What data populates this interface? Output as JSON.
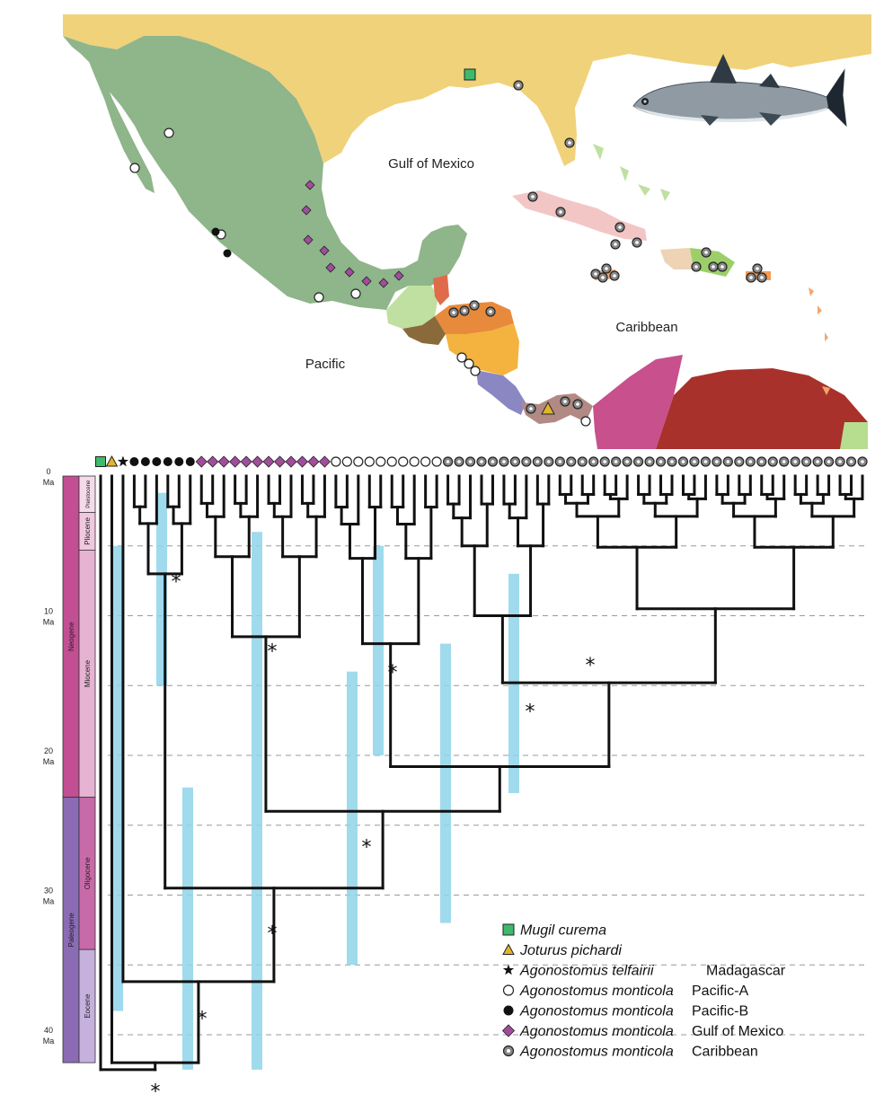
{
  "map": {
    "labels": {
      "gulf": "Gulf of Mexico",
      "caribbean": "Caribbean",
      "pacific": "Pacific"
    },
    "colors": {
      "us": "#f0d27a",
      "mexico": "#8fb58a",
      "sea": "#ffffff",
      "cuba": "#f3c6c6",
      "hispaniola": "#9ccf6a",
      "south_america": "#a9312c",
      "venezuela_pink": "#c8508c",
      "central_green": "#b7dd8f",
      "honduras": "#e88a3c",
      "nicaragua": "#f3b33e",
      "costa_rica": "#8b87c2",
      "panama": "#b08a83",
      "belize": "#e06b4a",
      "guatemala": "#bfe0a0"
    }
  },
  "legend": {
    "entries": [
      {
        "species": "Mugil curema",
        "region": "",
        "marker": "square",
        "color": "#3dba6a"
      },
      {
        "species": "Joturus pichardi",
        "region": "",
        "marker": "triangle",
        "color": "#e2b52b"
      },
      {
        "species": "Agonostomus telfairii",
        "region": "Madagascar",
        "marker": "star",
        "color": "#111111"
      },
      {
        "species": "Agonostomus monticola",
        "region": "Pacific-A",
        "marker": "open-circle",
        "color": "#ffffff"
      },
      {
        "species": "Agonostomus monticola",
        "region": "Pacific-B",
        "marker": "filled-circle",
        "color": "#111111"
      },
      {
        "species": "Agonostomus monticola",
        "region": "Gulf of Mexico",
        "marker": "diamond",
        "color": "#a14d9c"
      },
      {
        "species": "Agonostomus monticola",
        "region": "Caribbean",
        "marker": "ring-circle",
        "color": "#888888"
      }
    ]
  },
  "timescale": {
    "ticks": [
      {
        "ma": 0,
        "label": "0",
        "unit": "Ma"
      },
      {
        "ma": 10,
        "label": "10",
        "unit": "Ma"
      },
      {
        "ma": 20,
        "label": "20",
        "unit": "Ma"
      },
      {
        "ma": 30,
        "label": "30",
        "unit": "Ma"
      },
      {
        "ma": 40,
        "label": "40",
        "unit": "Ma"
      }
    ],
    "periods": [
      {
        "name": "Neogene",
        "start": 0,
        "end": 23,
        "color": "#c24e93"
      },
      {
        "name": "Paleogene",
        "start": 23,
        "end": 42,
        "color": "#8b6bb4"
      }
    ],
    "epochs": [
      {
        "name": "Pleistocene",
        "start": 0,
        "end": 2.6,
        "color": "#f4dbe9"
      },
      {
        "name": "Pliocene",
        "start": 2.6,
        "end": 5.3,
        "color": "#f0c9df"
      },
      {
        "name": "Miocene",
        "start": 5.3,
        "end": 23,
        "color": "#e7b3d2"
      },
      {
        "name": "Oligocene",
        "start": 23,
        "end": 33.9,
        "color": "#c86aa8"
      },
      {
        "name": "Eocene",
        "start": 33.9,
        "end": 42,
        "color": "#c6b0dc"
      }
    ],
    "max_ma": 42
  },
  "tree": {
    "node_marker": "*",
    "bar_color": "#8fd3ea",
    "gridline_ages": [
      5,
      10,
      15,
      20,
      25,
      30,
      35,
      40
    ]
  },
  "tip_markers": {
    "sequence": [
      {
        "marker": "square",
        "count": 1
      },
      {
        "marker": "triangle",
        "count": 1
      },
      {
        "marker": "star",
        "count": 1
      },
      {
        "marker": "filled-circle",
        "count": 6
      },
      {
        "marker": "diamond",
        "count": 12
      },
      {
        "marker": "open-circle",
        "count": 10
      },
      {
        "marker": "ring-circle",
        "count": 38
      }
    ]
  }
}
